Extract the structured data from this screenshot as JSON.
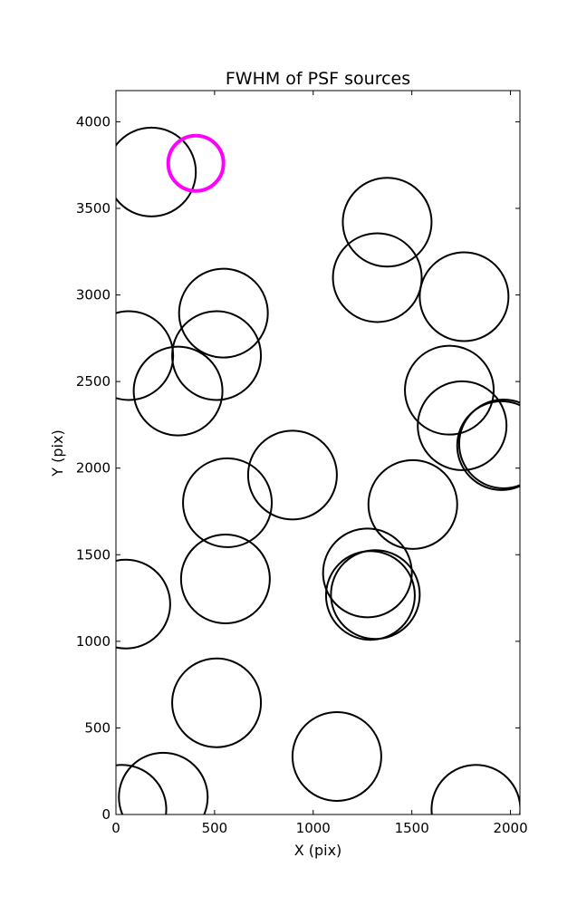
{
  "chart_data": {
    "type": "scatter",
    "title": "FWHM of PSF sources",
    "xlabel": "X (pix)",
    "ylabel": "Y (pix)",
    "xlim": [
      0,
      2048
    ],
    "ylim": [
      0,
      4180
    ],
    "xticks": [
      0,
      500,
      1000,
      1500,
      2000
    ],
    "yticks": [
      0,
      500,
      1000,
      1500,
      2000,
      2500,
      3000,
      3500,
      4000
    ],
    "grid": false,
    "marker": "open-circle",
    "sources": [
      {
        "x": 180,
        "y": 3710,
        "fwhm": 225
      },
      {
        "x": 1375,
        "y": 3420,
        "fwhm": 225
      },
      {
        "x": 1325,
        "y": 3100,
        "fwhm": 225
      },
      {
        "x": 1765,
        "y": 2990,
        "fwhm": 225
      },
      {
        "x": 545,
        "y": 2895,
        "fwhm": 225
      },
      {
        "x": 65,
        "y": 2650,
        "fwhm": 225
      },
      {
        "x": 510,
        "y": 2650,
        "fwhm": 225
      },
      {
        "x": 315,
        "y": 2445,
        "fwhm": 225
      },
      {
        "x": 1690,
        "y": 2450,
        "fwhm": 225
      },
      {
        "x": 1755,
        "y": 2245,
        "fwhm": 225
      },
      {
        "x": 1955,
        "y": 2130,
        "fwhm": 225
      },
      {
        "x": 1965,
        "y": 2140,
        "fwhm": 225
      },
      {
        "x": 895,
        "y": 1960,
        "fwhm": 225
      },
      {
        "x": 565,
        "y": 1800,
        "fwhm": 225
      },
      {
        "x": 1505,
        "y": 1790,
        "fwhm": 225
      },
      {
        "x": 1275,
        "y": 1395,
        "fwhm": 225
      },
      {
        "x": 555,
        "y": 1360,
        "fwhm": 225
      },
      {
        "x": 1290,
        "y": 1265,
        "fwhm": 225
      },
      {
        "x": 1315,
        "y": 1270,
        "fwhm": 225
      },
      {
        "x": 50,
        "y": 1215,
        "fwhm": 225
      },
      {
        "x": 510,
        "y": 645,
        "fwhm": 225
      },
      {
        "x": 1120,
        "y": 335,
        "fwhm": 225
      },
      {
        "x": 1825,
        "y": 30,
        "fwhm": 225
      },
      {
        "x": 240,
        "y": 100,
        "fwhm": 225
      },
      {
        "x": 30,
        "y": 30,
        "fwhm": 225
      }
    ],
    "highlight": {
      "x": 405,
      "y": 3760,
      "fwhm": 140,
      "color": "#ff00ff"
    },
    "circle_color": "#000000"
  }
}
